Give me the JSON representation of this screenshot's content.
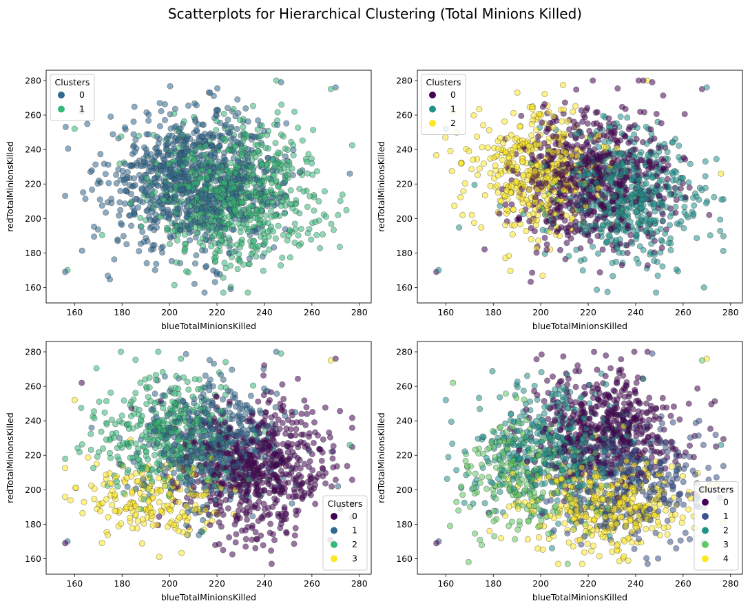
{
  "figure": {
    "title": "Scatterplots for Hierarchical Clustering (Total Minions Killed)"
  },
  "chart_data": [
    {
      "type": "scatter",
      "xlabel": "blueTotalMinionsKilled",
      "ylabel": "redTotalMinionsKilled",
      "xlim": [
        148,
        285
      ],
      "ylim": [
        151,
        286
      ],
      "xticks": [
        160,
        180,
        200,
        220,
        240,
        260,
        280
      ],
      "yticks": [
        160,
        180,
        200,
        220,
        240,
        260,
        280
      ],
      "legend": {
        "title": "Clusters",
        "placement": "top-left",
        "labels": [
          "0",
          "1"
        ]
      },
      "colors": [
        "#31688e",
        "#35b779"
      ],
      "series": [
        {
          "name": "0",
          "center": [
            210,
            222
          ],
          "spread": [
            18,
            20
          ],
          "count": 900
        },
        {
          "name": "1",
          "center": [
            228,
            214
          ],
          "spread": [
            18,
            20
          ],
          "count": 750
        }
      ],
      "outliers": [
        [
          156,
          169
        ],
        [
          157,
          170
        ],
        [
          276,
          226
        ],
        [
          268,
          275
        ],
        [
          270,
          276
        ],
        [
          245,
          280
        ],
        [
          247,
          279
        ],
        [
          160,
          252
        ],
        [
          163,
          262
        ],
        [
          271,
          202
        ]
      ]
    },
    {
      "type": "scatter",
      "xlabel": "blueTotalMinionsKilled",
      "ylabel": "redTotalMinionsKilled",
      "xlim": [
        148,
        285
      ],
      "ylim": [
        151,
        286
      ],
      "xticks": [
        160,
        180,
        200,
        220,
        240,
        260,
        280
      ],
      "yticks": [
        160,
        180,
        200,
        220,
        240,
        260,
        280
      ],
      "legend": {
        "title": "Clusters",
        "placement": "top-left",
        "labels": [
          "0",
          "1",
          "2"
        ]
      },
      "colors": [
        "#440154",
        "#21918c",
        "#fde725"
      ],
      "series": [
        {
          "name": "0",
          "center": [
            222,
            222
          ],
          "spread": [
            16,
            20
          ],
          "count": 650
        },
        {
          "name": "1",
          "center": [
            236,
            212
          ],
          "spread": [
            16,
            19
          ],
          "count": 550
        },
        {
          "name": "2",
          "center": [
            198,
            228
          ],
          "spread": [
            15,
            20
          ],
          "count": 420
        }
      ],
      "outliers": [
        [
          156,
          169
        ],
        [
          157,
          170
        ],
        [
          276,
          226
        ],
        [
          268,
          275
        ],
        [
          270,
          276
        ],
        [
          245,
          280
        ],
        [
          247,
          279
        ],
        [
          160,
          252
        ],
        [
          163,
          262
        ],
        [
          271,
          202
        ]
      ]
    },
    {
      "type": "scatter",
      "xlabel": "blueTotalMinionsKilled",
      "ylabel": "redTotalMinionsKilled",
      "xlim": [
        148,
        285
      ],
      "ylim": [
        151,
        286
      ],
      "xticks": [
        160,
        180,
        200,
        220,
        240,
        260,
        280
      ],
      "yticks": [
        160,
        180,
        200,
        220,
        240,
        260,
        280
      ],
      "legend": {
        "title": "Clusters",
        "placement": "lower-right",
        "labels": [
          "0",
          "1",
          "2",
          "3"
        ]
      },
      "colors": [
        "#440154",
        "#31688e",
        "#35b779",
        "#fde725"
      ],
      "series": [
        {
          "name": "0",
          "center": [
            236,
            212
          ],
          "spread": [
            16,
            20
          ],
          "count": 650
        },
        {
          "name": "1",
          "center": [
            218,
            226
          ],
          "spread": [
            15,
            18
          ],
          "count": 500
        },
        {
          "name": "2",
          "center": [
            198,
            232
          ],
          "spread": [
            16,
            17
          ],
          "count": 380
        },
        {
          "name": "3",
          "center": [
            192,
            196
          ],
          "spread": [
            14,
            12
          ],
          "count": 200
        }
      ],
      "outliers": [
        [
          156,
          169
        ],
        [
          157,
          170
        ],
        [
          276,
          226
        ],
        [
          268,
          275
        ],
        [
          270,
          276
        ],
        [
          245,
          280
        ],
        [
          247,
          279
        ],
        [
          160,
          252
        ],
        [
          163,
          262
        ],
        [
          271,
          202
        ]
      ]
    },
    {
      "type": "scatter",
      "xlabel": "blueTotalMinionsKilled",
      "ylabel": "redTotalMinionsKilled",
      "xlim": [
        148,
        285
      ],
      "ylim": [
        151,
        286
      ],
      "xticks": [
        160,
        180,
        200,
        220,
        240,
        260,
        280
      ],
      "yticks": [
        160,
        180,
        200,
        220,
        240,
        260,
        280
      ],
      "legend": {
        "title": "Clusters",
        "placement": "lower-right",
        "labels": [
          "0",
          "1",
          "2",
          "3",
          "4"
        ]
      },
      "colors": [
        "#440154",
        "#3b528b",
        "#21918c",
        "#5ec962",
        "#fde725"
      ],
      "series": [
        {
          "name": "0",
          "center": [
            228,
            236
          ],
          "spread": [
            15,
            16
          ],
          "count": 520
        },
        {
          "name": "1",
          "center": [
            238,
            204
          ],
          "spread": [
            16,
            18
          ],
          "count": 380
        },
        {
          "name": "2",
          "center": [
            204,
            224
          ],
          "spread": [
            16,
            18
          ],
          "count": 420
        },
        {
          "name": "3",
          "center": [
            192,
            206
          ],
          "spread": [
            15,
            18
          ],
          "count": 220
        },
        {
          "name": "4",
          "center": [
            226,
            190
          ],
          "spread": [
            18,
            14
          ],
          "count": 360
        }
      ],
      "outliers": [
        [
          156,
          169
        ],
        [
          157,
          170
        ],
        [
          276,
          226
        ],
        [
          268,
          275
        ],
        [
          270,
          276
        ],
        [
          245,
          280
        ],
        [
          247,
          279
        ],
        [
          160,
          252
        ],
        [
          163,
          262
        ],
        [
          271,
          202
        ]
      ]
    }
  ]
}
